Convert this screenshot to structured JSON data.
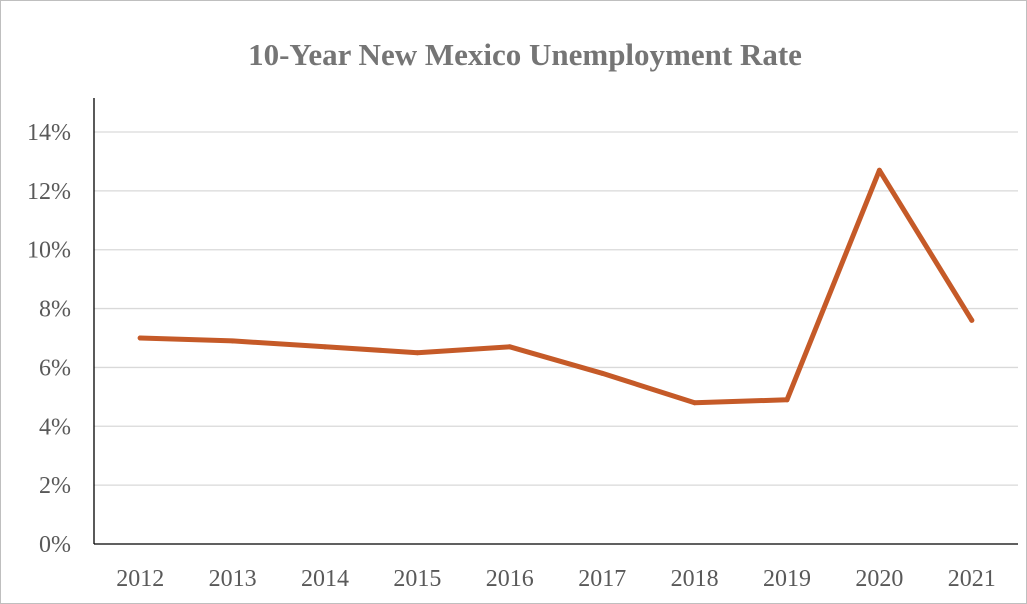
{
  "chart_data": {
    "type": "line",
    "title": "10-Year New Mexico Unemployment Rate",
    "xlabel": "",
    "ylabel": "",
    "categories": [
      "2012",
      "2013",
      "2014",
      "2015",
      "2016",
      "2017",
      "2018",
      "2019",
      "2020",
      "2021"
    ],
    "series": [
      {
        "values": [
          7.0,
          6.9,
          6.7,
          6.5,
          6.7,
          5.8,
          4.8,
          4.9,
          12.7,
          7.6
        ]
      }
    ],
    "ylim": [
      0,
      14
    ],
    "yticks": [
      "0%",
      "2%",
      "4%",
      "6%",
      "8%",
      "10%",
      "12%",
      "14%"
    ],
    "grid": true,
    "legend": "none",
    "colors": {
      "line": "#c55a28",
      "grid": "#d9d9d9",
      "axis": "#000000"
    }
  }
}
